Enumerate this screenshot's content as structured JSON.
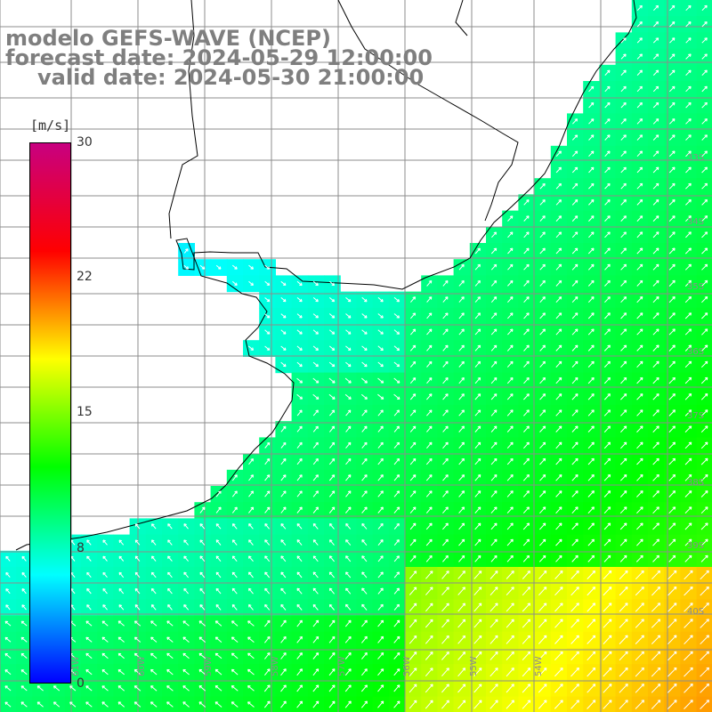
{
  "title": {
    "line1": "modelo GEFS-WAVE (NCEP)",
    "line2": "forecast date: 2024-05-29 12:00:00",
    "line3": "valid date: 2024-05-30 21:00:00"
  },
  "colorbar": {
    "unit": "[m/s]",
    "ticks": [
      "30",
      "22",
      "15",
      "8",
      "0"
    ],
    "tick_values": [
      30,
      22,
      15,
      8,
      0
    ],
    "min": 0,
    "max": 30,
    "colors": [
      "#0000ff",
      "#00ffff",
      "#00ff00",
      "#ffff00",
      "#ff0000",
      "#c80080"
    ]
  },
  "map": {
    "background": "#ffffff",
    "coastline_color": "#000000",
    "grid_color": "#8c8c8c",
    "arrow_color": "#ffffff",
    "lat_labels": [
      "33S",
      "34S",
      "35S",
      "36S",
      "37S",
      "38S",
      "39S",
      "40S"
    ],
    "lon_labels": [
      "61W",
      "60W",
      "59W",
      "58W",
      "57W",
      "56W",
      "55W",
      "54W"
    ]
  }
}
